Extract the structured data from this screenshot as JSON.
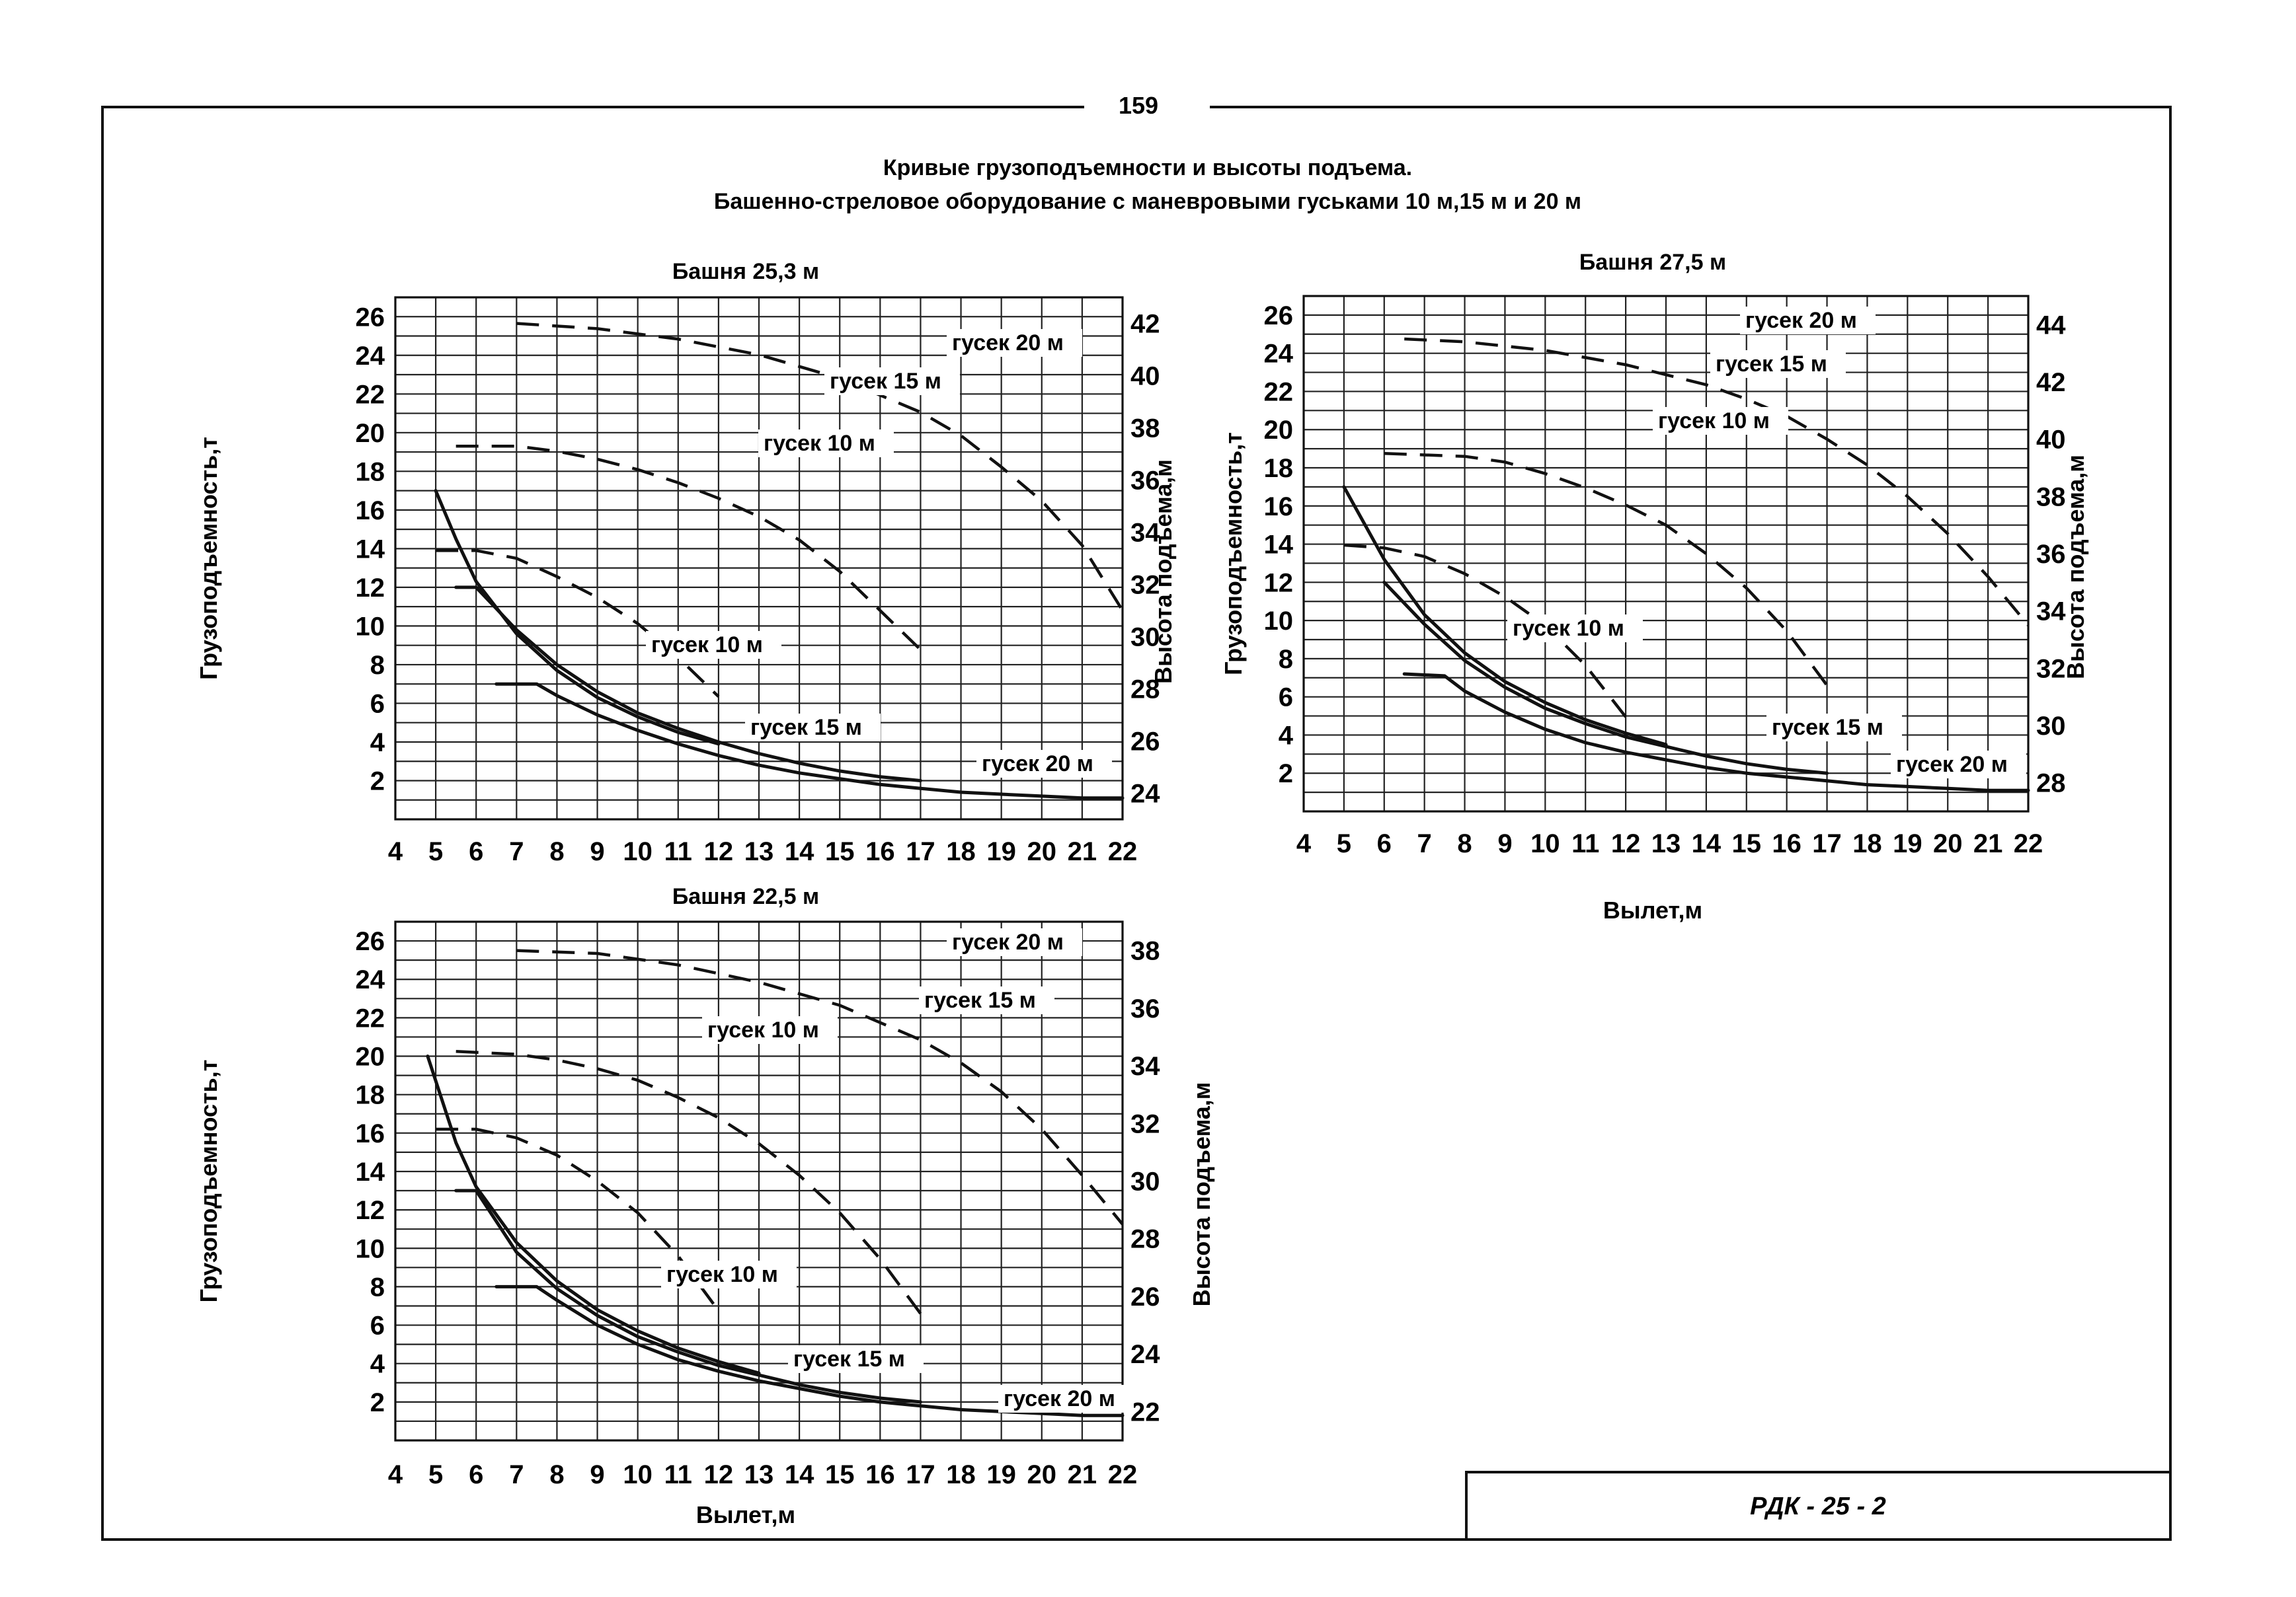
{
  "page": {
    "page_number": "159",
    "title_line1": "Кривые грузоподъемности и высоты подъема.",
    "title_line2": "Башенно-стреловое оборудование с маневровыми гуськами 10 м,15 м и 20 м",
    "stamp": "РДК - 25 - 2"
  },
  "chart_data": [
    {
      "type": "line",
      "title": "Башня 25,3 м",
      "ylabel": "Грузоподъемность,т",
      "y2label": "Высота подъема,м",
      "xlabel": "",
      "xlim": [
        4,
        22
      ],
      "ylim": [
        0,
        27
      ],
      "x_ticks": [
        "4",
        "5",
        "6",
        "7",
        "8",
        "9",
        "10",
        "11",
        "12",
        "13",
        "14",
        "15",
        "16",
        "17",
        "18",
        "19",
        "20",
        "21",
        "22"
      ],
      "y_ticks": [
        "2",
        "4",
        "6",
        "8",
        "10",
        "12",
        "14",
        "16",
        "18",
        "20",
        "22",
        "24",
        "26"
      ],
      "height_ticks": [
        "24",
        "26",
        "28",
        "30",
        "32",
        "34",
        "36",
        "38",
        "40",
        "42"
      ],
      "grid": true,
      "series": [
        {
          "name": "гусек 10 м",
          "kind": "capacity",
          "x": [
            5,
            5.5,
            6,
            7,
            8,
            9,
            10,
            11,
            12
          ],
          "y": [
            17,
            14.5,
            12.3,
            9.6,
            7.7,
            6.3,
            5.3,
            4.5,
            3.9
          ]
        },
        {
          "name": "гусек 15 м",
          "kind": "capacity",
          "x": [
            5.5,
            6,
            7,
            8,
            9,
            10,
            11,
            12,
            13,
            14,
            15,
            16,
            17
          ],
          "y": [
            12,
            12,
            9.8,
            8,
            6.6,
            5.5,
            4.7,
            4,
            3.4,
            2.9,
            2.5,
            2.2,
            2
          ]
        },
        {
          "name": "гусек 20 м",
          "kind": "capacity",
          "x": [
            6.5,
            7.5,
            8,
            9,
            10,
            11,
            12,
            13,
            14,
            15,
            16,
            17,
            18,
            19,
            20,
            21,
            22
          ],
          "y": [
            7,
            7,
            6.4,
            5.4,
            4.6,
            3.9,
            3.3,
            2.8,
            2.4,
            2.1,
            1.8,
            1.6,
            1.4,
            1.3,
            1.2,
            1.1,
            1.1
          ]
        },
        {
          "name": "гусек 10 м",
          "kind": "height",
          "x": [
            5,
            6,
            7,
            8,
            9,
            10,
            11,
            12
          ],
          "h": [
            33.3,
            33.3,
            33,
            32.3,
            31.5,
            30.5,
            29.2,
            27.7
          ]
        },
        {
          "name": "гусек 15 м",
          "kind": "height",
          "x": [
            5.5,
            7,
            8,
            9,
            10,
            11,
            12,
            13,
            14,
            15,
            16,
            17
          ],
          "h": [
            37.3,
            37.3,
            37.1,
            36.8,
            36.4,
            35.9,
            35.3,
            34.6,
            33.7,
            32.5,
            31,
            29.5
          ]
        },
        {
          "name": "гусек 20 м",
          "kind": "height",
          "x": [
            7,
            9,
            11,
            13,
            15,
            17,
            18,
            19,
            20,
            21,
            22
          ],
          "h": [
            42,
            41.8,
            41.4,
            40.8,
            39.9,
            38.6,
            37.7,
            36.5,
            35.2,
            33.5,
            31
          ]
        }
      ],
      "labels": [
        "гусек 20 м",
        "гусек 15 м",
        "гусек 10 м",
        "гусек 10 м",
        "гусек 15 м",
        "гусек 20 м"
      ]
    },
    {
      "type": "line",
      "title": "Башня 27,5 м",
      "ylabel": "Грузоподъемность,т",
      "y2label": "Высота подъема,м",
      "xlabel": "Вылет,м",
      "xlim": [
        4,
        22
      ],
      "ylim": [
        0,
        27
      ],
      "x_ticks": [
        "4",
        "5",
        "6",
        "7",
        "8",
        "9",
        "10",
        "11",
        "12",
        "13",
        "14",
        "15",
        "16",
        "17",
        "18",
        "19",
        "20",
        "21",
        "22"
      ],
      "y_ticks": [
        "2",
        "4",
        "6",
        "8",
        "10",
        "12",
        "14",
        "16",
        "18",
        "20",
        "22",
        "24",
        "26"
      ],
      "height_ticks": [
        "28",
        "30",
        "32",
        "34",
        "36",
        "38",
        "40",
        "42",
        "44"
      ],
      "grid": true,
      "series": [
        {
          "name": "гусек 10 м",
          "kind": "capacity",
          "x": [
            5,
            6,
            7,
            8,
            9,
            10,
            11,
            12,
            13
          ],
          "y": [
            17,
            13.2,
            10.3,
            8.3,
            6.8,
            5.7,
            4.8,
            4.1,
            3.5
          ]
        },
        {
          "name": "гусек 15 м",
          "kind": "capacity",
          "x": [
            6,
            7,
            8,
            9,
            10,
            11,
            12,
            13,
            14,
            15,
            16,
            17
          ],
          "y": [
            12,
            9.8,
            7.9,
            6.5,
            5.4,
            4.6,
            3.9,
            3.4,
            2.9,
            2.5,
            2.2,
            2
          ]
        },
        {
          "name": "гусек 20 м",
          "kind": "capacity",
          "x": [
            6.5,
            7.5,
            8,
            9,
            10,
            11,
            12,
            13,
            14,
            15,
            16,
            17,
            18,
            19,
            20,
            21,
            22
          ],
          "y": [
            7.2,
            7.1,
            6.3,
            5.2,
            4.3,
            3.6,
            3.1,
            2.7,
            2.3,
            2,
            1.8,
            1.6,
            1.4,
            1.3,
            1.2,
            1.1,
            1.1
          ]
        },
        {
          "name": "гусек 10 м",
          "kind": "height",
          "x": [
            5,
            6,
            7,
            8,
            9,
            10,
            11,
            12
          ],
          "h": [
            36.3,
            36.2,
            35.9,
            35.3,
            34.5,
            33.5,
            32.1,
            30.3
          ]
        },
        {
          "name": "гусек 15 м",
          "kind": "height",
          "x": [
            6,
            8,
            9,
            10,
            11,
            12,
            13,
            14,
            15,
            16,
            17
          ],
          "h": [
            39.5,
            39.4,
            39.2,
            38.8,
            38.3,
            37.7,
            37,
            36,
            34.8,
            33.3,
            31.4
          ]
        },
        {
          "name": "гусек 20 м",
          "kind": "height",
          "x": [
            6.5,
            8,
            10,
            12,
            14,
            15,
            16,
            17,
            18,
            19,
            20,
            21,
            22
          ],
          "h": [
            43.5,
            43.4,
            43.1,
            42.6,
            41.9,
            41.4,
            40.8,
            40,
            39.1,
            38,
            36.7,
            35.2,
            33.5
          ]
        }
      ],
      "labels": [
        "гусек 20 м",
        "гусек 15 м",
        "гусек 10 м",
        "гусек 10 м",
        "гусек 15 м",
        "гусек 20 м"
      ]
    },
    {
      "type": "line",
      "title": "Башня 22,5 м",
      "ylabel": "Грузоподъемность,т",
      "y2label": "Высота подъема,м",
      "xlabel": "Вылет,м",
      "xlim": [
        4,
        22
      ],
      "ylim": [
        0,
        27
      ],
      "x_ticks": [
        "4",
        "5",
        "6",
        "7",
        "8",
        "9",
        "10",
        "11",
        "12",
        "13",
        "14",
        "15",
        "16",
        "17",
        "18",
        "19",
        "20",
        "21",
        "22"
      ],
      "y_ticks": [
        "2",
        "4",
        "6",
        "8",
        "10",
        "12",
        "14",
        "16",
        "18",
        "20",
        "22",
        "24",
        "26"
      ],
      "height_ticks": [
        "22",
        "24",
        "26",
        "28",
        "30",
        "32",
        "34",
        "36",
        "38"
      ],
      "grid": true,
      "series": [
        {
          "name": "гусек 10 м",
          "kind": "capacity",
          "x": [
            4.8,
            5.5,
            6,
            7,
            8,
            9,
            10,
            11,
            12,
            13
          ],
          "y": [
            20,
            15.5,
            13.2,
            10.3,
            8.3,
            6.8,
            5.7,
            4.8,
            4.1,
            3.5
          ]
        },
        {
          "name": "гусек 15 м",
          "kind": "capacity",
          "x": [
            5.5,
            6,
            7,
            8,
            9,
            10,
            11,
            12,
            13,
            14,
            15,
            16,
            17
          ],
          "y": [
            13,
            13,
            9.8,
            7.9,
            6.5,
            5.4,
            4.6,
            3.9,
            3.4,
            2.9,
            2.5,
            2.2,
            2
          ]
        },
        {
          "name": "гусек 20 м",
          "kind": "capacity",
          "x": [
            6.5,
            7.5,
            8,
            9,
            10,
            11,
            12,
            13,
            14,
            15,
            16,
            17,
            18,
            19,
            20,
            21,
            22
          ],
          "y": [
            8,
            8,
            7.3,
            6,
            5,
            4.2,
            3.6,
            3.1,
            2.7,
            2.3,
            2,
            1.8,
            1.6,
            1.5,
            1.4,
            1.3,
            1.3
          ]
        },
        {
          "name": "гусек 10 м",
          "kind": "height",
          "x": [
            5,
            6,
            7,
            8,
            9,
            10,
            11,
            12
          ],
          "h": [
            31.8,
            31.8,
            31.5,
            30.9,
            30,
            28.9,
            27.4,
            25.5
          ]
        },
        {
          "name": "гусек 15 м",
          "kind": "height",
          "x": [
            5.5,
            7,
            8,
            9,
            10,
            11,
            12,
            13,
            14,
            15,
            16,
            17
          ],
          "h": [
            34.5,
            34.4,
            34.2,
            33.9,
            33.5,
            32.9,
            32.2,
            31.3,
            30.2,
            28.9,
            27.3,
            25.4
          ]
        },
        {
          "name": "гусек 20 м",
          "kind": "height",
          "x": [
            7,
            9,
            11,
            13,
            15,
            17,
            18,
            19,
            20,
            21,
            22
          ],
          "h": [
            38,
            37.9,
            37.5,
            36.9,
            36.1,
            34.9,
            34.1,
            33.1,
            31.8,
            30.2,
            28.5
          ]
        }
      ],
      "labels": [
        "гусек 20 м",
        "гусек 15 м",
        "гусек 10 м",
        "гусек 10 м",
        "гусек 15 м",
        "гусек 20 м"
      ]
    }
  ]
}
